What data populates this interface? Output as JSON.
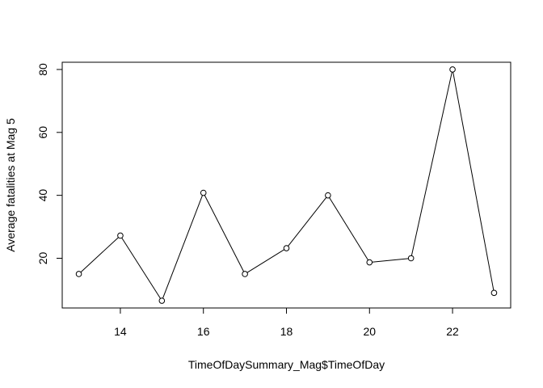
{
  "chart_data": {
    "type": "line",
    "title": "",
    "xlabel": "TimeOfDaySummary_Mag$TimeOfDay",
    "ylabel": "Average fatalities at Mag 5",
    "x": [
      13,
      14,
      15,
      16,
      17,
      18,
      19,
      20,
      21,
      22,
      23
    ],
    "series": [
      {
        "values": [
          15,
          27.2,
          6.5,
          40.8,
          15,
          23.2,
          40,
          18.7,
          20,
          80,
          9
        ]
      }
    ],
    "xlim": [
      12.6,
      23.4
    ],
    "ylim": [
      4.2,
      82.3
    ],
    "xticks": [
      14,
      16,
      18,
      20,
      22
    ],
    "yticks": [
      20,
      40,
      60,
      80
    ],
    "marker": "open-circle",
    "grid": false,
    "legend": "none"
  }
}
